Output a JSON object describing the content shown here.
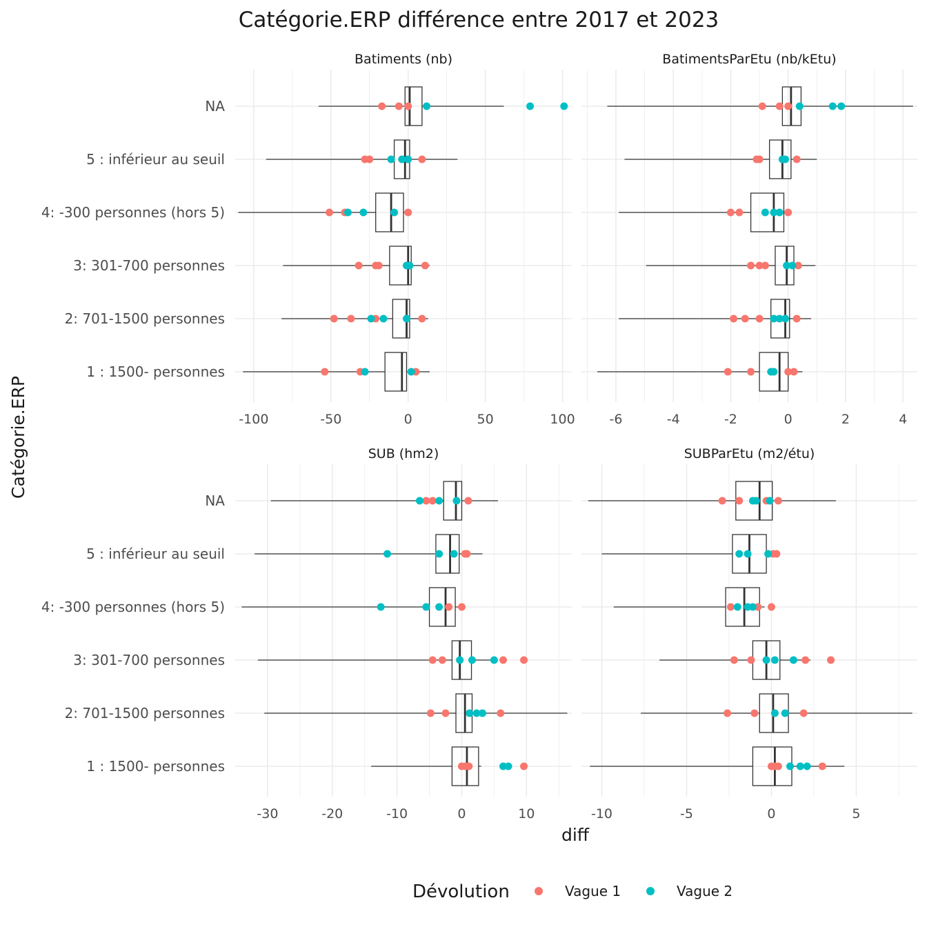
{
  "chart_data": {
    "type": "boxplot",
    "title": "Catégorie.ERP différence entre 2017 et 2023",
    "xlabel": "diff",
    "ylabel": "Catégorie.ERP",
    "legend": {
      "title": "Dévolution",
      "position": "bottom",
      "entries": [
        {
          "name": "Vague 1",
          "color": "#f8766d"
        },
        {
          "name": "Vague 2",
          "color": "#00bfc4"
        }
      ]
    },
    "categories": [
      "NA",
      "5 : inférieur au seuil",
      "4: -300 personnes (hors 5)",
      "3: 301-700 personnes",
      "2: 701-1500 personnes",
      "1 : 1500- personnes"
    ],
    "panels": [
      {
        "title": "Batiments (nb)",
        "xlim": [
          -112,
          106
        ],
        "xticks": [
          -100,
          -50,
          0,
          50,
          100
        ],
        "xticklabels": [
          "-100",
          "-50",
          "0",
          "50",
          "100"
        ],
        "boxes": [
          {
            "category": "NA",
            "whisker_low": -58,
            "q1": -2,
            "median": 1,
            "q3": 9,
            "whisker_high": 62
          },
          {
            "category": "5 : inférieur au seuil",
            "whisker_low": -92,
            "q1": -9,
            "median": -2,
            "q3": 1,
            "whisker_high": 32
          },
          {
            "category": "4: -300 personnes (hors 5)",
            "whisker_low": -110,
            "q1": -21,
            "median": -11,
            "q3": -3,
            "whisker_high": 0
          },
          {
            "category": "3: 301-700 personnes",
            "whisker_low": -81,
            "q1": -12,
            "median": 0,
            "q3": 2,
            "whisker_high": 14
          },
          {
            "category": "2: 701-1500 personnes",
            "whisker_low": -82,
            "q1": -10,
            "median": -1,
            "q3": 1,
            "whisker_high": 13
          },
          {
            "category": "1 : 1500- personnes",
            "whisker_low": -107,
            "q1": -15,
            "median": -4,
            "q3": -1,
            "whisker_high": 14
          }
        ],
        "points": [
          {
            "category": "NA",
            "vague1": [
              -17,
              -6,
              0
            ],
            "vague2": [
              12,
              79,
              101
            ]
          },
          {
            "category": "5 : inférieur au seuil",
            "vague1": [
              -28,
              -25,
              9
            ],
            "vague2": [
              -11,
              -4,
              0
            ]
          },
          {
            "category": "4: -300 personnes (hors 5)",
            "vague1": [
              -51,
              -41,
              0
            ],
            "vague2": [
              -39,
              -29,
              -9
            ]
          },
          {
            "category": "3: 301-700 personnes",
            "vague1": [
              -32,
              -21,
              -19,
              11
            ],
            "vague2": [
              -1,
              1
            ]
          },
          {
            "category": "2: 701-1500 personnes",
            "vague1": [
              -48,
              -37,
              -21,
              9
            ],
            "vague2": [
              -24,
              -16,
              -1
            ]
          },
          {
            "category": "1 : 1500- personnes",
            "vague1": [
              -54,
              -31,
              5
            ],
            "vague2": [
              -28,
              2
            ]
          }
        ]
      },
      {
        "title": "BatimentsParEtu (nb/kEtu)",
        "xlim": [
          -7.2,
          4.5
        ],
        "xticks": [
          -6,
          -4,
          -2,
          0,
          2,
          4
        ],
        "xticklabels": [
          "-6",
          "-4",
          "-2",
          "0",
          "2",
          "4"
        ],
        "boxes": [
          {
            "category": "NA",
            "whisker_low": -6.3,
            "q1": -0.2,
            "median": 0.1,
            "q3": 0.45,
            "whisker_high": 4.35
          },
          {
            "category": "5 : inférieur au seuil",
            "whisker_low": -5.7,
            "q1": -0.65,
            "median": -0.2,
            "q3": 0.1,
            "whisker_high": 1.0
          },
          {
            "category": "4: -300 personnes (hors 5)",
            "whisker_low": -5.9,
            "q1": -1.3,
            "median": -0.5,
            "q3": -0.15,
            "whisker_high": 0.1
          },
          {
            "category": "3: 301-700 personnes",
            "whisker_low": -4.95,
            "q1": -0.45,
            "median": -0.05,
            "q3": 0.2,
            "whisker_high": 0.95
          },
          {
            "category": "2: 701-1500 personnes",
            "whisker_low": -5.9,
            "q1": -0.6,
            "median": -0.1,
            "q3": 0.05,
            "whisker_high": 0.8
          },
          {
            "category": "1 : 1500- personnes",
            "whisker_low": -6.65,
            "q1": -1.0,
            "median": -0.3,
            "q3": 0.0,
            "whisker_high": 0.5
          }
        ],
        "points": [
          {
            "category": "NA",
            "vague1": [
              -0.9,
              -0.3,
              0.0
            ],
            "vague2": [
              0.4,
              1.55,
              1.85
            ]
          },
          {
            "category": "5 : inférieur au seuil",
            "vague1": [
              -1.1,
              -1.0,
              0.3
            ],
            "vague2": [
              -0.2,
              -0.1
            ]
          },
          {
            "category": "4: -300 personnes (hors 5)",
            "vague1": [
              -2.0,
              -1.7,
              0.0
            ],
            "vague2": [
              -0.8,
              -0.5,
              -0.3
            ]
          },
          {
            "category": "3: 301-700 personnes",
            "vague1": [
              -1.3,
              -1.0,
              -0.8,
              0.35
            ],
            "vague2": [
              -0.05,
              0.15
            ]
          },
          {
            "category": "2: 701-1500 personnes",
            "vague1": [
              -1.9,
              -1.5,
              -1.0,
              0.3
            ],
            "vague2": [
              -0.5,
              -0.3,
              -0.1
            ]
          },
          {
            "category": "1 : 1500- personnes",
            "vague1": [
              -2.1,
              -1.3,
              0.0,
              0.2
            ],
            "vague2": [
              -0.6,
              -0.5
            ]
          }
        ]
      },
      {
        "title": "SUB (hm2)",
        "xlim": [
          -35,
          17
        ],
        "xticks": [
          -30,
          -20,
          -10,
          0,
          10
        ],
        "xticklabels": [
          "-30",
          "-20",
          "-10",
          "0",
          "10"
        ],
        "boxes": [
          {
            "category": "NA",
            "whisker_low": -29.5,
            "q1": -2.8,
            "median": -0.9,
            "q3": 0.0,
            "whisker_high": 5.6
          },
          {
            "category": "5 : inférieur au seuil",
            "whisker_low": -32.0,
            "q1": -4.0,
            "median": -1.8,
            "q3": -0.4,
            "whisker_high": 3.2
          },
          {
            "category": "4: -300 personnes (hors 5)",
            "whisker_low": -34.0,
            "q1": -5.0,
            "median": -2.5,
            "q3": -1.0,
            "whisker_high": -0.1
          },
          {
            "category": "3: 301-700 personnes",
            "whisker_low": -31.5,
            "q1": -1.5,
            "median": -0.3,
            "q3": 1.5,
            "whisker_high": 4.7
          },
          {
            "category": "2: 701-1500 personnes",
            "whisker_low": -30.5,
            "q1": -0.9,
            "median": 0.5,
            "q3": 1.6,
            "whisker_high": 16.3
          },
          {
            "category": "1 : 1500- personnes",
            "whisker_low": -14.0,
            "q1": -1.5,
            "median": 0.8,
            "q3": 2.6,
            "whisker_high": 3.0
          }
        ],
        "points": [
          {
            "category": "NA",
            "vague1": [
              -5.5,
              -4.5,
              1.0
            ],
            "vague2": [
              -6.5,
              -3.5,
              -0.8
            ]
          },
          {
            "category": "5 : inférieur au seuil",
            "vague1": [
              0.5,
              0.8
            ],
            "vague2": [
              -11.5,
              -3.5,
              -1.2
            ]
          },
          {
            "category": "4: -300 personnes (hors 5)",
            "vague1": [
              -2.0,
              0.0
            ],
            "vague2": [
              -12.5,
              -5.5,
              -3.5
            ]
          },
          {
            "category": "3: 301-700 personnes",
            "vague1": [
              -4.5,
              -3.0,
              6.4,
              9.6
            ],
            "vague2": [
              -0.3,
              1.6,
              5.0
            ]
          },
          {
            "category": "2: 701-1500 personnes",
            "vague1": [
              -4.8,
              -2.5,
              6.0
            ],
            "vague2": [
              1.2,
              2.3,
              3.2
            ]
          },
          {
            "category": "1 : 1500- personnes",
            "vague1": [
              0.0,
              0.6,
              1.1,
              9.6
            ],
            "vague2": [
              6.4,
              7.2
            ]
          }
        ]
      },
      {
        "title": "SUBParEtu (m2/étu)",
        "xlim": [
          -11.2,
          8.6
        ],
        "xticks": [
          -10,
          -5,
          0,
          5
        ],
        "xticklabels": [
          "-10",
          "-5",
          "0",
          "5"
        ],
        "boxes": [
          {
            "category": "NA",
            "whisker_low": -10.8,
            "q1": -2.1,
            "median": -0.7,
            "q3": 0.05,
            "whisker_high": 3.8
          },
          {
            "category": "5 : inférieur au seuil",
            "whisker_low": -10.0,
            "q1": -2.3,
            "median": -1.3,
            "q3": -0.3,
            "whisker_high": 0.2
          },
          {
            "category": "4: -300 personnes (hors 5)",
            "whisker_low": -9.3,
            "q1": -2.7,
            "median": -1.6,
            "q3": -0.7,
            "whisker_high": -0.4
          },
          {
            "category": "3: 301-700 personnes",
            "whisker_low": -6.6,
            "q1": -1.1,
            "median": -0.3,
            "q3": 0.5,
            "whisker_high": 2.3
          },
          {
            "category": "2: 701-1500 personnes",
            "whisker_low": -7.7,
            "q1": -0.7,
            "median": 0.1,
            "q3": 1.0,
            "whisker_high": 8.3
          },
          {
            "category": "1 : 1500- personnes",
            "whisker_low": -10.7,
            "q1": -1.1,
            "median": 0.2,
            "q3": 1.2,
            "whisker_high": 4.3
          }
        ],
        "points": [
          {
            "category": "NA",
            "vague1": [
              -2.9,
              -1.9,
              -0.3,
              0.4
            ],
            "vague2": [
              -1.1,
              -0.9,
              -0.1
            ]
          },
          {
            "category": "5 : inférieur au seuil",
            "vague1": [
              0.1,
              0.3
            ],
            "vague2": [
              -1.9,
              -1.4,
              -0.2
            ]
          },
          {
            "category": "4: -300 personnes (hors 5)",
            "vague1": [
              -2.4,
              -0.8,
              0.0
            ],
            "vague2": [
              -2.0,
              -1.4,
              -1.1
            ]
          },
          {
            "category": "3: 301-700 personnes",
            "vague1": [
              -2.2,
              -1.2,
              2.0,
              3.5
            ],
            "vague2": [
              -0.3,
              0.2,
              1.3
            ]
          },
          {
            "category": "2: 701-1500 personnes",
            "vague1": [
              -2.6,
              -1.0,
              1.9
            ],
            "vague2": [
              0.2,
              0.8
            ]
          },
          {
            "category": "1 : 1500- personnes",
            "vague1": [
              0.0,
              0.2,
              0.4,
              3.0
            ],
            "vague2": [
              1.1,
              1.7,
              2.1
            ]
          }
        ]
      }
    ],
    "grid": true
  }
}
